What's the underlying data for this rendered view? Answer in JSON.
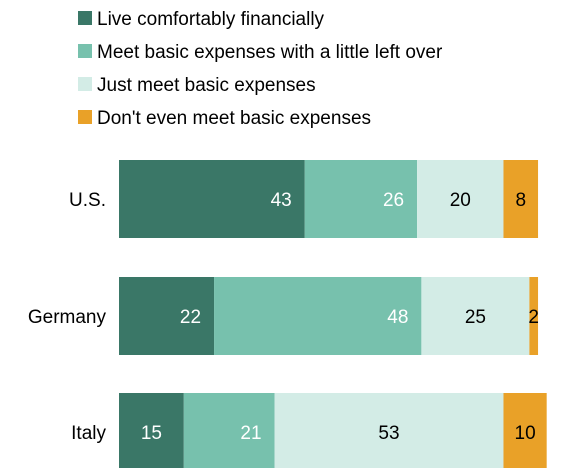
{
  "chart_data": {
    "type": "bar",
    "orientation": "horizontal",
    "stacked": true,
    "title": "",
    "xlabel": "",
    "ylabel": "",
    "xlim": [
      0,
      100
    ],
    "grid": false,
    "legend_position": "top-left",
    "categories": [
      "U.S.",
      "Germany",
      "Italy"
    ],
    "series": [
      {
        "name": "Live comfortably financially",
        "color": "#3a7767",
        "label_color": "#ffffff",
        "values": [
          43,
          22,
          15
        ]
      },
      {
        "name": "Meet basic expenses with a little left over",
        "color": "#77c1ad",
        "label_color": "#ffffff",
        "values": [
          26,
          48,
          21
        ]
      },
      {
        "name": "Just meet basic expenses",
        "color": "#d3ece6",
        "label_color": "#000000",
        "values": [
          20,
          25,
          53
        ]
      },
      {
        "name": "Don't even meet basic expenses",
        "color": "#e9a128",
        "label_color": "#000000",
        "values": [
          8,
          2,
          10
        ]
      }
    ]
  }
}
